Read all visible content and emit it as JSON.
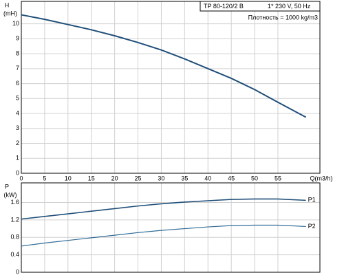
{
  "chart_data": [
    {
      "type": "line",
      "ylabel": "H",
      "yunit": "(mH)",
      "xlabel": "Q(m3/h)",
      "annotations": [
        "TP 80-120/2 B",
        "1* 230 V, 50 Hz",
        "Плотность = 1000 kg/m3"
      ],
      "x": [
        0,
        5,
        10,
        15,
        20,
        25,
        30,
        35,
        40,
        45,
        50,
        55,
        61
      ],
      "values": [
        10.6,
        10.3,
        9.95,
        9.6,
        9.2,
        8.75,
        8.25,
        7.65,
        7.0,
        6.35,
        5.6,
        4.75,
        3.75
      ],
      "color": "#1f4e79",
      "xlim": [
        0,
        64
      ],
      "xticks": [
        0,
        5,
        10,
        15,
        20,
        25,
        30,
        35,
        40,
        45,
        50,
        55
      ],
      "ylim": [
        0,
        11.5
      ],
      "yticks": [
        0,
        1,
        2,
        3,
        4,
        5,
        6,
        7,
        8,
        9,
        10
      ],
      "grid": true
    },
    {
      "type": "line",
      "ylabel": "P",
      "yunit": "(kW)",
      "x": [
        0,
        5,
        10,
        15,
        20,
        25,
        30,
        35,
        40,
        45,
        50,
        55,
        61
      ],
      "series": [
        {
          "name": "P1",
          "color": "#1f4e79",
          "values": [
            1.22,
            1.28,
            1.34,
            1.4,
            1.46,
            1.52,
            1.57,
            1.61,
            1.64,
            1.67,
            1.68,
            1.68,
            1.65
          ]
        },
        {
          "name": "P2",
          "color": "#2e6a96",
          "values": [
            0.6,
            0.67,
            0.73,
            0.79,
            0.85,
            0.91,
            0.96,
            1.0,
            1.04,
            1.07,
            1.08,
            1.08,
            1.05
          ]
        }
      ],
      "xlim": [
        0,
        64
      ],
      "ylim": [
        0,
        2.05
      ],
      "yticks": [
        0,
        0.4,
        0.8,
        1.2,
        1.6
      ],
      "grid": true
    }
  ]
}
